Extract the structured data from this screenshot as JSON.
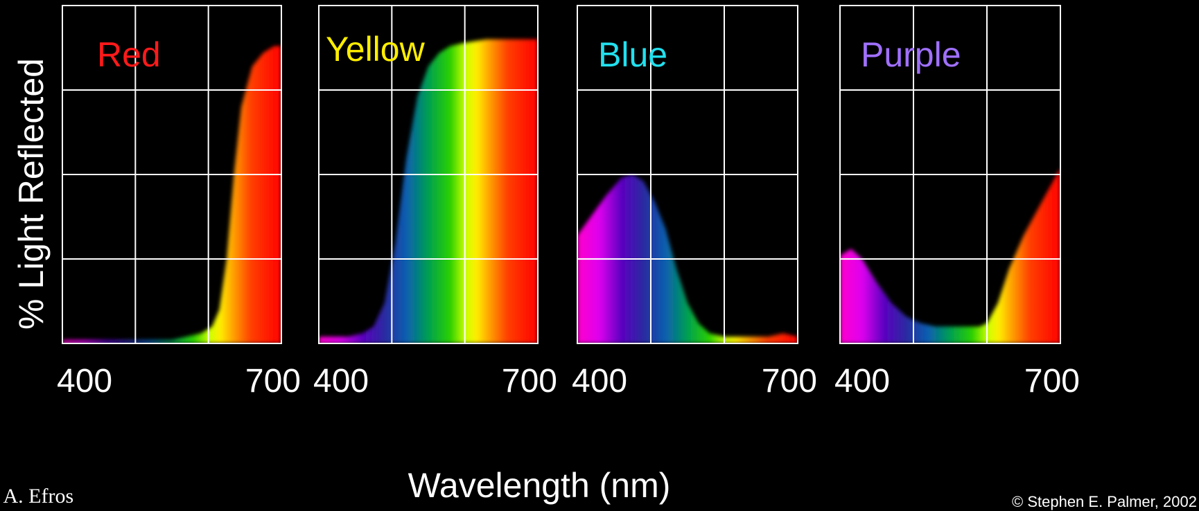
{
  "chart_data": {
    "type": "area",
    "ylabel": "% Light Reflected",
    "xlabel": "Wavelength (nm)",
    "xlim": [
      400,
      700
    ],
    "ylim": [
      0,
      100
    ],
    "grid": true,
    "panels": [
      {
        "label": "Red",
        "label_color": "#ff1a1a",
        "x_tick_labels": [
          "400",
          "700"
        ],
        "x": [
          400,
          450,
          500,
          550,
          570,
          590,
          605,
          615,
          625,
          635,
          645,
          660,
          675,
          690,
          700
        ],
        "y": [
          1,
          1,
          1,
          1,
          2,
          3,
          5,
          10,
          25,
          50,
          70,
          82,
          86,
          88,
          88
        ]
      },
      {
        "label": "Yellow",
        "label_color": "#ffee00",
        "x_tick_labels": [
          "400",
          "700"
        ],
        "x": [
          400,
          420,
          440,
          460,
          475,
          490,
          505,
          520,
          535,
          550,
          565,
          580,
          600,
          630,
          660,
          700
        ],
        "y": [
          2,
          2,
          2,
          3,
          5,
          12,
          30,
          55,
          73,
          82,
          86,
          88,
          89,
          90,
          90,
          90
        ]
      },
      {
        "label": "Blue",
        "label_color": "#22e0ee",
        "x_tick_labels": [
          "400",
          "700"
        ],
        "x": [
          400,
          420,
          440,
          460,
          475,
          490,
          505,
          520,
          535,
          550,
          565,
          580,
          600,
          630,
          660,
          680,
          700
        ],
        "y": [
          32,
          38,
          44,
          49,
          50,
          48,
          42,
          34,
          22,
          12,
          6,
          3,
          2,
          2,
          2,
          3,
          2
        ]
      },
      {
        "label": "Purple",
        "label_color": "#a070ff",
        "x_tick_labels": [
          "400",
          "700"
        ],
        "x": [
          400,
          415,
          430,
          450,
          470,
          490,
          510,
          530,
          550,
          570,
          590,
          600,
          615,
          630,
          650,
          670,
          690,
          700
        ],
        "y": [
          26,
          28,
          25,
          18,
          12,
          8,
          6,
          5,
          5,
          5,
          5,
          6,
          12,
          22,
          32,
          40,
          48,
          52
        ]
      }
    ]
  },
  "credits": {
    "left": "t: A. Efros",
    "right": "© Stephen E. Palmer, 2002"
  }
}
